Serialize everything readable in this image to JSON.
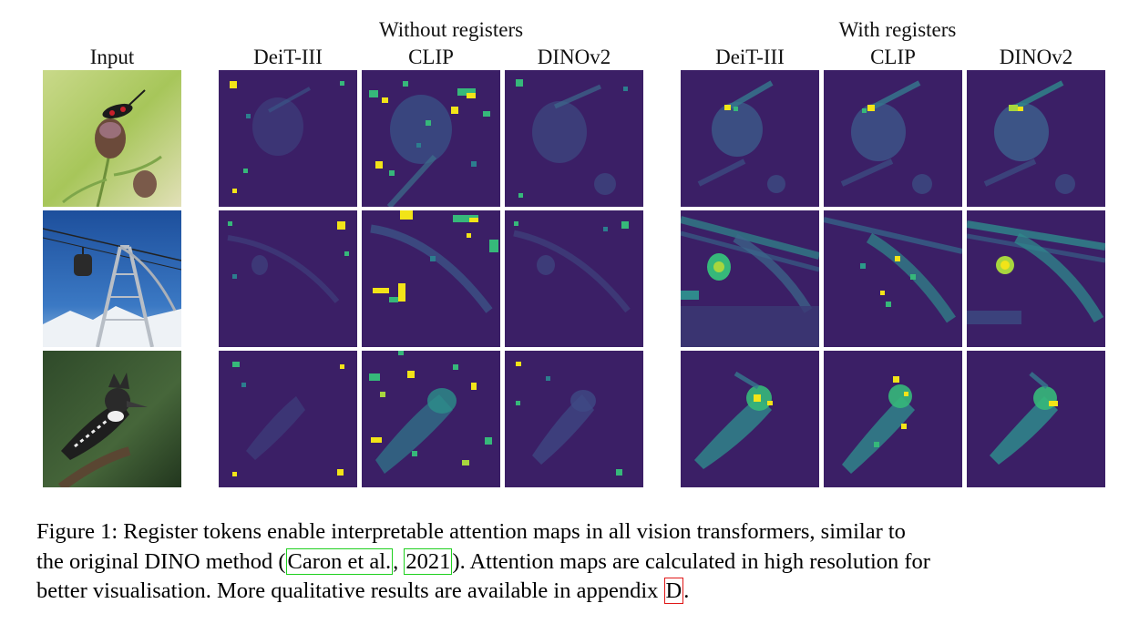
{
  "figure": {
    "group_without": "Without registers",
    "group_with": "With registers",
    "col_input": "Input",
    "models": [
      "DeiT-III",
      "CLIP",
      "DINOv2"
    ],
    "rows": [
      "insect-on-flower",
      "cable-car-pylon",
      "kingfisher-bird"
    ],
    "colors": {
      "map_bg": "#3b1f66",
      "map_mid": "#2c7e8e",
      "map_hi": "#36b87a",
      "map_peak": "#f2e418"
    }
  },
  "caption": {
    "line1": "Figure 1: Register tokens enable  interpretable attention maps in all vision transformers, similar to",
    "line2_pre": "the original DINO method (",
    "cite_author": "Caron et al.",
    "cite_sep": ", ",
    "cite_year": "2021",
    "line2_post": "). Attention maps are calculated in high resolution for",
    "line3_pre": "better visualisation. More qualitative results are available in appendix ",
    "ref_appendix": "D",
    "line3_post": "."
  }
}
